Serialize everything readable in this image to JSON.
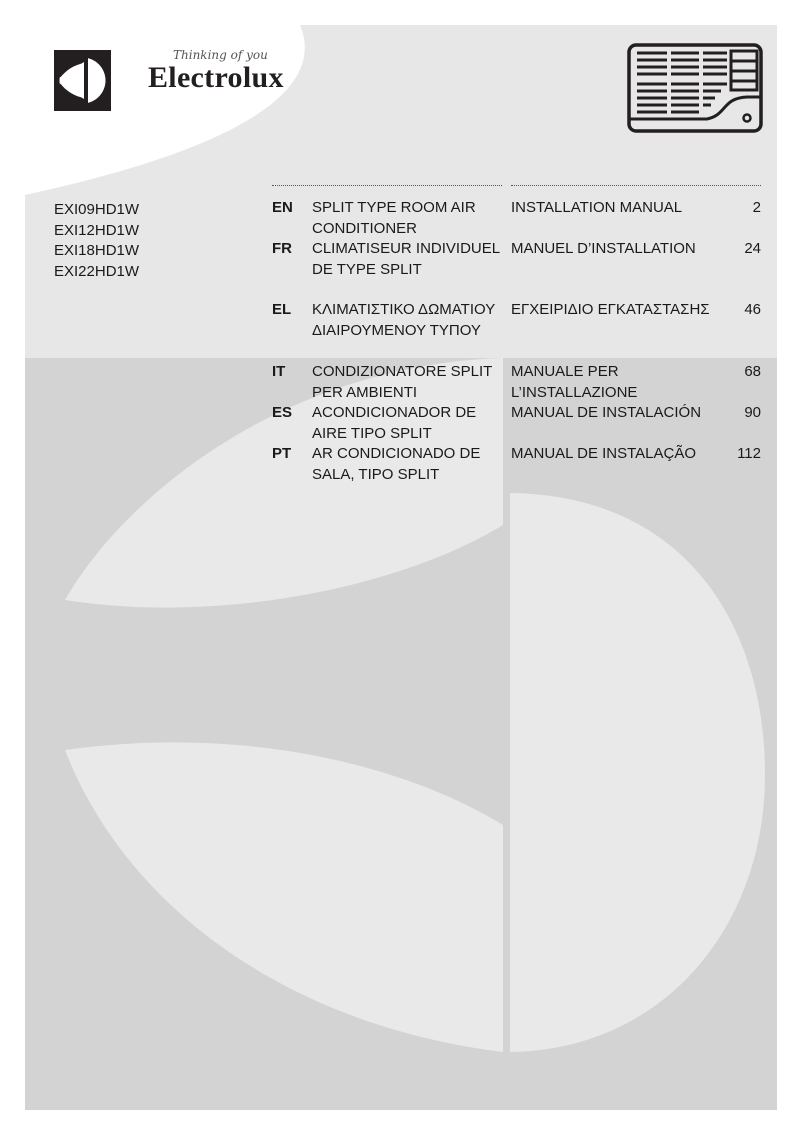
{
  "brand": {
    "name": "Electrolux",
    "tagline": "Thinking of you"
  },
  "illustration": "air-conditioner-icon",
  "models": [
    "EXI09HD1W",
    "EXI12HD1W",
    "EXI18HD1W",
    "EXI22HD1W"
  ],
  "contents": [
    {
      "code": "EN",
      "product": "SPLIT TYPE ROOM AIR CONDITIONER",
      "manual": "INSTALLATION MANUAL",
      "page": "2"
    },
    {
      "code": "FR",
      "product": "CLIMATISEUR INDIVIDUEL DE TYPE SPLIT",
      "manual": "MANUEL D’INSTALLATION",
      "page": "24"
    },
    {
      "code": "EL",
      "product": "ΚΛΙΜΑΤΙΣΤΙΚΟ ΔΩΜΑΤΙΟΥ ΔΙΑΙΡΟΥΜΕΝΟΥ ΤΥΠΟΥ",
      "manual": "ΕΓΧΕΙΡΙΔΙΟ ΕΓΚΑΤΑΣΤΑΣΗΣ",
      "page": "46"
    },
    {
      "code": "IT",
      "product": "CONDIZIONATORE SPLIT PER AMBIENTI",
      "manual": "MANUALE PER L’INSTALLAZIONE",
      "page": "68"
    },
    {
      "code": "ES",
      "product": "ACONDICIONADOR DE AIRE TIPO SPLIT",
      "manual": "MANUAL DE INSTALACIÓN",
      "page": "90"
    },
    {
      "code": "PT",
      "product": "AR CONDICIONADO DE SALA, TIPO SPLIT",
      "manual": "MANUAL DE INSTALAÇÃO",
      "page": "112"
    }
  ],
  "colors": {
    "top_band": "#e7e7e8",
    "bottom_band": "#d3d3d4",
    "logo": "#231f20"
  }
}
